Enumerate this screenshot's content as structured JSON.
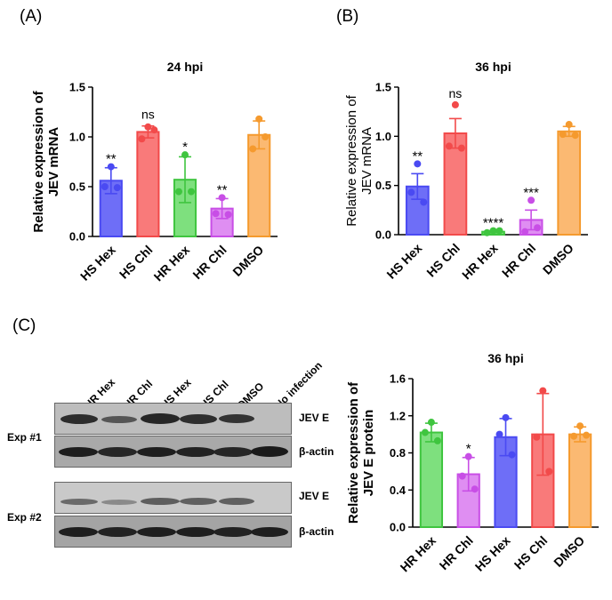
{
  "panels": {
    "a_label": "(A)",
    "b_label": "(B)",
    "c_label": "(C)"
  },
  "colors": {
    "HS Hex": "#4a4af2",
    "HS Chl": "#f24a4a",
    "HR Hex": "#3fc53f",
    "HR Chl": "#c84ee6",
    "DMSO": "#f59a2e",
    "bar_fill_HS Hex": "#6e6ef7",
    "bar_fill_HS Chl": "#f97a7a",
    "bar_fill_HR Hex": "#7ee07e",
    "bar_fill_HR Chl": "#df8ef2",
    "bar_fill_DMSO": "#fbb972"
  },
  "blot": {
    "lanes": [
      "HR Hex",
      "HR Chl",
      "HS Hex",
      "HS Chl",
      "DMSO",
      "No infection"
    ],
    "rows": [
      "JEV E",
      "β-actin",
      "JEV E",
      "β-actin"
    ],
    "experiments": [
      "Exp #1",
      "Exp #2"
    ]
  },
  "chart_data": [
    {
      "type": "bar",
      "title": "24 hpi",
      "ylabel": "Relative expression of JEV mRNA",
      "xlabel": "",
      "ylim": [
        0,
        1.5
      ],
      "yticks": [
        "0.0",
        "0.5",
        "1.0",
        "1.5"
      ],
      "categories": [
        "HS Hex",
        "HS Chl",
        "HR Hex",
        "HR Chl",
        "DMSO"
      ],
      "values": [
        0.56,
        1.05,
        0.57,
        0.28,
        1.02
      ],
      "errors": [
        0.13,
        0.06,
        0.23,
        0.1,
        0.14
      ],
      "points": [
        [
          0.7,
          0.5,
          0.49
        ],
        [
          1.1,
          0.98,
          1.07
        ],
        [
          0.82,
          0.45,
          0.45
        ],
        [
          0.39,
          0.23,
          0.22
        ],
        [
          1.18,
          0.88,
          1.0
        ]
      ],
      "annotations": [
        "**",
        "ns",
        "*",
        "**",
        ""
      ]
    },
    {
      "type": "bar",
      "title": "36 hpi",
      "ylabel": "Relative expression of JEV mRNA",
      "xlabel": "",
      "ylim": [
        0,
        1.5
      ],
      "yticks": [
        "0.0",
        "0.5",
        "1.0",
        "1.5"
      ],
      "categories": [
        "HS Hex",
        "HS Chl",
        "HR Hex",
        "HR Chl",
        "DMSO"
      ],
      "values": [
        0.49,
        1.03,
        0.03,
        0.15,
        1.05
      ],
      "errors": [
        0.13,
        0.15,
        0.01,
        0.1,
        0.05
      ],
      "points": [
        [
          0.72,
          0.43,
          0.33
        ],
        [
          1.32,
          0.9,
          0.88
        ],
        [
          0.04,
          0.02,
          0.04
        ],
        [
          0.35,
          0.03,
          0.07
        ],
        [
          1.12,
          1.02,
          1.01
        ]
      ],
      "annotations": [
        "**",
        "ns",
        "****",
        "***",
        ""
      ]
    },
    {
      "type": "bar",
      "title": "36 hpi",
      "ylabel": "Relative expression of JEV E protein",
      "xlabel": "",
      "ylim": [
        0,
        1.6
      ],
      "yticks": [
        "0.0",
        "0.4",
        "0.8",
        "1.2",
        "1.6"
      ],
      "categories": [
        "HR Hex",
        "HR Chl",
        "HS Hex",
        "HS Chl",
        "DMSO"
      ],
      "values": [
        1.02,
        0.57,
        0.97,
        1.0,
        1.0
      ],
      "errors": [
        0.1,
        0.18,
        0.2,
        0.44,
        0.08
      ],
      "points": [
        [
          1.13,
          1.02,
          0.93
        ],
        [
          0.76,
          0.55,
          0.41
        ],
        [
          1.18,
          1.0,
          0.78
        ],
        [
          1.47,
          0.97,
          0.6
        ],
        [
          1.09,
          0.98,
          0.99
        ]
      ],
      "annotations": [
        "",
        "*",
        "",
        "",
        ""
      ]
    }
  ]
}
